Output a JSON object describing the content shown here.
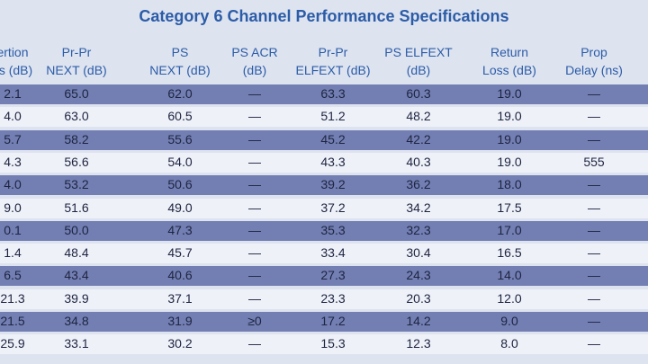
{
  "title": "Category 6 Channel Performance Specifications",
  "table": {
    "headers": [
      [
        "ertion",
        "ss (dB)"
      ],
      [
        "Pr-Pr",
        "NEXT (dB)"
      ],
      [
        "PS",
        "NEXT (dB)"
      ],
      [
        "PS ACR",
        "(dB)"
      ],
      [
        "Pr-Pr",
        "ELFEXT (dB)"
      ],
      [
        "PS ELFEXT",
        "(dB)"
      ],
      [
        "Return",
        "Loss (dB)"
      ],
      [
        "Prop",
        "Delay (ns)"
      ]
    ],
    "rows": [
      [
        "2.1",
        "65.0",
        "62.0",
        "—",
        "63.3",
        "60.3",
        "19.0",
        "—"
      ],
      [
        "4.0",
        "63.0",
        "60.5",
        "—",
        "51.2",
        "48.2",
        "19.0",
        "—"
      ],
      [
        "5.7",
        "58.2",
        "55.6",
        "—",
        "45.2",
        "42.2",
        "19.0",
        "—"
      ],
      [
        "4.3",
        "56.6",
        "54.0",
        "—",
        "43.3",
        "40.3",
        "19.0",
        "555"
      ],
      [
        "4.0",
        "53.2",
        "50.6",
        "—",
        "39.2",
        "36.2",
        "18.0",
        "—"
      ],
      [
        "9.0",
        "51.6",
        "49.0",
        "—",
        "37.2",
        "34.2",
        "17.5",
        "—"
      ],
      [
        "0.1",
        "50.0",
        "47.3",
        "—",
        "35.3",
        "32.3",
        "17.0",
        "—"
      ],
      [
        "1.4",
        "48.4",
        "45.7",
        "—",
        "33.4",
        "30.4",
        "16.5",
        "—"
      ],
      [
        "6.5",
        "43.4",
        "40.6",
        "—",
        "27.3",
        "24.3",
        "14.0",
        "—"
      ],
      [
        "21.3",
        "39.9",
        "37.1",
        "—",
        "23.3",
        "20.3",
        "12.0",
        "—"
      ],
      [
        "21.5",
        "34.8",
        "31.9",
        "≥0",
        "17.2",
        "14.2",
        "9.0",
        "—"
      ],
      [
        "25.9",
        "33.1",
        "30.2",
        "—",
        "15.3",
        "12.3",
        "8.0",
        "—"
      ]
    ]
  }
}
